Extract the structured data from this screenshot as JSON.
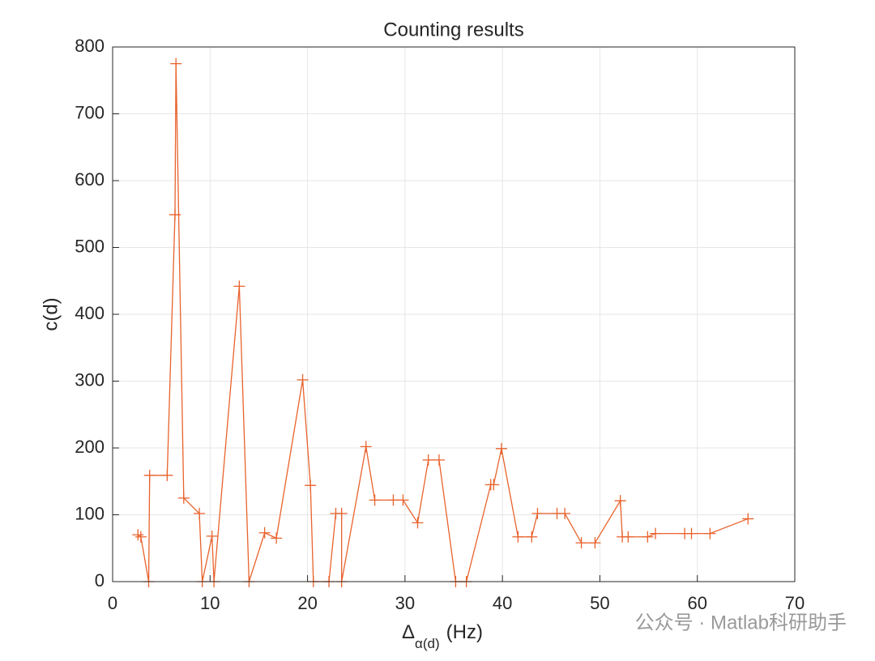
{
  "chart_data": {
    "type": "line",
    "title": "Counting results",
    "ylabel": "c(d)",
    "xlabel": {
      "base": "Δ",
      "sub": "α(d)",
      "rest": "(Hz)"
    },
    "watermark": "公众号 · Matlab科研助手",
    "xlim": [
      0,
      70
    ],
    "xticks": [
      0,
      10,
      20,
      30,
      40,
      50,
      60,
      70
    ],
    "ylim": [
      0,
      800
    ],
    "yticks": [
      0,
      100,
      200,
      300,
      400,
      500,
      600,
      700,
      800
    ],
    "grid": true,
    "series": [
      {
        "color": "#e8622c",
        "marker": "+",
        "x": [
          2.6,
          2.9,
          3.7,
          3.8,
          5.6,
          6.4,
          6.5,
          7.3,
          8.9,
          9.2,
          10.2,
          10.4,
          13.0,
          14.0,
          15.6,
          16.8,
          19.5,
          20.3,
          20.6,
          22.2,
          22.9,
          23.5,
          23.5,
          26.0,
          26.9,
          28.8,
          29.8,
          31.3,
          32.4,
          33.5,
          35.2,
          36.3,
          38.8,
          39.1,
          39.9,
          41.6,
          43.0,
          43.6,
          45.6,
          46.4,
          48.1,
          49.5,
          52.1,
          52.3,
          52.9,
          54.9,
          55.7,
          58.7,
          59.4,
          61.3,
          65.2
        ],
        "values": [
          70,
          67,
          0,
          159,
          159,
          549,
          775,
          125,
          102,
          0,
          68,
          0,
          442,
          0,
          73,
          65,
          302,
          144,
          0,
          0,
          102,
          102,
          0,
          202,
          122,
          122,
          122,
          88,
          182,
          182,
          0,
          0,
          145,
          145,
          199,
          67,
          67,
          102,
          102,
          102,
          58,
          58,
          121,
          67,
          67,
          67,
          72,
          72,
          72,
          72,
          94
        ]
      }
    ]
  }
}
